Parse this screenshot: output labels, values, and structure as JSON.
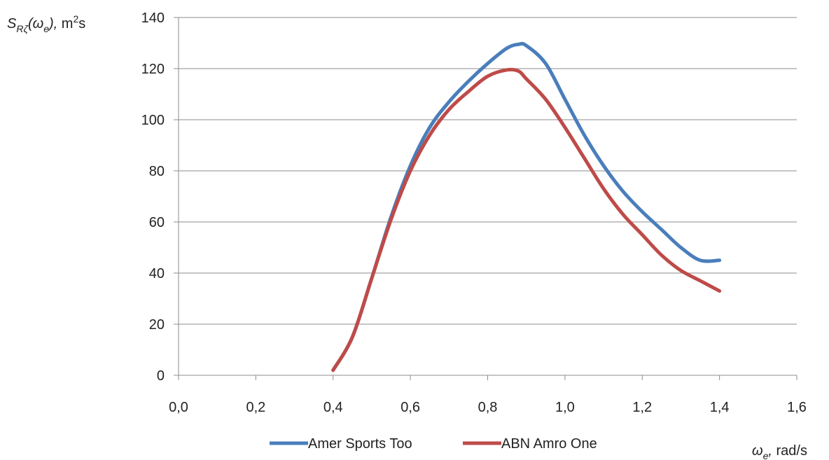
{
  "chart_data": {
    "type": "line",
    "title": "",
    "ylabel": {
      "symbol": "S",
      "subscript": "Rζ",
      "arg_open": "(ω",
      "arg_sub": "e",
      "arg_close": "),",
      "unit_prefix": " m",
      "unit_sup": "2",
      "unit_suffix": "s"
    },
    "xlabel": {
      "symbol": "ω",
      "subscript": "e",
      "comma": ",",
      "unit": " rad/s"
    },
    "xlim": [
      0.0,
      1.6
    ],
    "ylim": [
      0,
      140
    ],
    "x_ticks": [
      "0,0",
      "0,2",
      "0,4",
      "0,6",
      "0,8",
      "1,0",
      "1,2",
      "1,4",
      "1,6"
    ],
    "x_tick_values": [
      0.0,
      0.2,
      0.4,
      0.6,
      0.8,
      1.0,
      1.2,
      1.4,
      1.6
    ],
    "y_ticks": [
      "0",
      "20",
      "40",
      "60",
      "80",
      "100",
      "120",
      "140"
    ],
    "y_tick_values": [
      0,
      20,
      40,
      60,
      80,
      100,
      120,
      140
    ],
    "grid": "horizontal",
    "legend_position": "bottom",
    "series": [
      {
        "name": "Amer Sports Too",
        "color": "#4a7ebb",
        "x": [
          0.4,
          0.45,
          0.5,
          0.55,
          0.6,
          0.65,
          0.7,
          0.75,
          0.8,
          0.85,
          0.88,
          0.9,
          0.95,
          1.0,
          1.05,
          1.1,
          1.15,
          1.2,
          1.25,
          1.3,
          1.35,
          1.4
        ],
        "y": [
          2,
          15,
          38,
          62,
          82,
          97,
          107,
          115,
          122,
          128,
          129.5,
          129,
          122,
          108,
          94,
          82,
          72,
          64,
          57,
          50,
          45,
          45
        ]
      },
      {
        "name": "ABN Amro One",
        "color": "#be4b48",
        "x": [
          0.4,
          0.45,
          0.5,
          0.55,
          0.6,
          0.65,
          0.7,
          0.75,
          0.8,
          0.85,
          0.88,
          0.9,
          0.95,
          1.0,
          1.05,
          1.1,
          1.15,
          1.2,
          1.25,
          1.3,
          1.35,
          1.4
        ],
        "y": [
          2,
          15,
          38,
          61,
          80,
          94,
          104,
          111,
          117,
          119.5,
          119,
          116,
          108,
          97,
          85,
          73,
          63,
          55,
          47,
          41,
          37,
          33
        ]
      }
    ]
  }
}
